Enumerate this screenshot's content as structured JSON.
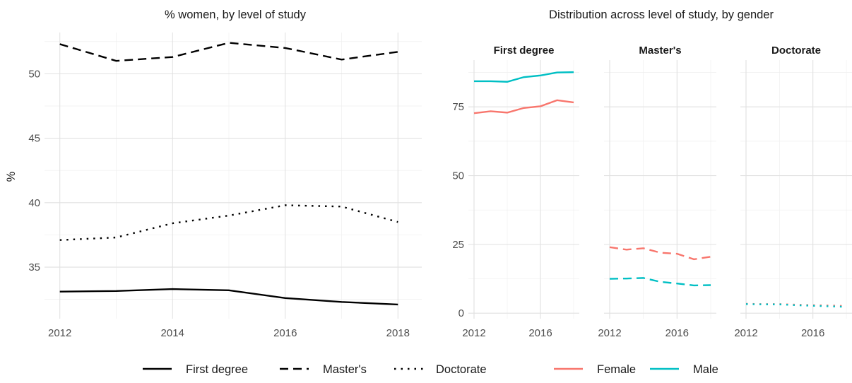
{
  "chart_data": [
    {
      "type": "line",
      "title": "% women, by level of study",
      "xlabel": "",
      "ylabel": "%",
      "xlim": [
        2012,
        2018
      ],
      "ylim": [
        31.0,
        53.2
      ],
      "x_ticks": [
        2012,
        2014,
        2016,
        2018
      ],
      "y_ticks": [
        35,
        40,
        45,
        50
      ],
      "x": [
        2012,
        2013,
        2014,
        2015,
        2016,
        2017,
        2018
      ],
      "series": [
        {
          "name": "First degree",
          "linetype": "solid",
          "values": [
            33.1,
            33.15,
            33.3,
            33.2,
            32.6,
            32.3,
            32.1
          ]
        },
        {
          "name": "Master's",
          "linetype": "dashed",
          "values": [
            52.3,
            51.0,
            51.3,
            52.4,
            52.0,
            51.1,
            51.7
          ]
        },
        {
          "name": "Doctorate",
          "linetype": "dotted",
          "values": [
            37.1,
            37.3,
            38.4,
            39.0,
            39.8,
            39.7,
            38.5
          ]
        }
      ],
      "grid": true
    },
    {
      "type": "line",
      "title": "Distribution across level of study, by gender",
      "xlabel": "",
      "ylabel": "",
      "xlim": [
        2012,
        2018
      ],
      "ylim": [
        -2,
        92
      ],
      "x_ticks": [
        2012,
        2016
      ],
      "y_ticks": [
        0,
        25,
        50,
        75
      ],
      "x": [
        2012,
        2013,
        2014,
        2015,
        2016,
        2017,
        2018
      ],
      "facets": [
        {
          "label": "First degree",
          "linetype": "solid",
          "series": [
            {
              "name": "Female",
              "values": [
                72.7,
                73.4,
                72.9,
                74.6,
                75.2,
                77.4,
                76.6
              ]
            },
            {
              "name": "Male",
              "values": [
                84.3,
                84.3,
                84.1,
                85.8,
                86.4,
                87.5,
                87.6
              ]
            }
          ]
        },
        {
          "label": "Master's",
          "linetype": "dashed",
          "series": [
            {
              "name": "Female",
              "values": [
                24.0,
                23.1,
                23.6,
                22.0,
                21.6,
                19.6,
                20.5
              ]
            },
            {
              "name": "Male",
              "values": [
                12.5,
                12.6,
                12.8,
                11.4,
                10.8,
                10.1,
                10.2
              ]
            }
          ]
        },
        {
          "label": "Doctorate",
          "linetype": "dotted",
          "series": [
            {
              "name": "Female",
              "values": [
                3.4,
                3.3,
                3.3,
                3.1,
                2.9,
                2.8,
                2.6
              ]
            },
            {
              "name": "Male",
              "values": [
                3.3,
                3.2,
                3.2,
                2.9,
                2.7,
                2.5,
                2.3
              ]
            }
          ]
        }
      ],
      "grid": true
    }
  ],
  "legend": {
    "placement": "bottom",
    "linetype_entries": [
      {
        "label": "First degree",
        "linetype": "solid"
      },
      {
        "label": "Master's",
        "linetype": "dashed"
      },
      {
        "label": "Doctorate",
        "linetype": "dotted"
      }
    ],
    "color_entries": [
      {
        "label": "Female",
        "color": "#F8766D"
      },
      {
        "label": "Male",
        "color": "#00BFC4"
      }
    ]
  },
  "colors": {
    "Female": "#F8766D",
    "Male": "#00BFC4",
    "line": "#000000"
  }
}
